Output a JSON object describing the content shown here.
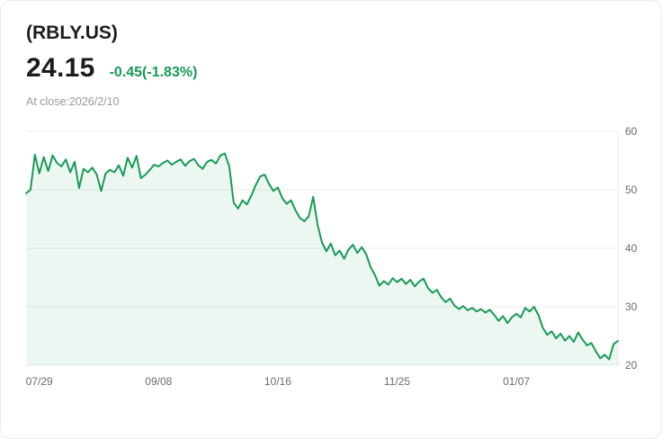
{
  "header": {
    "symbol": "(RBLY.US)",
    "price": "24.15",
    "change": "-0.45(-1.83%)",
    "close_info": "At close:2026/2/10"
  },
  "colors": {
    "change_green": "#169b54",
    "line": "#169b54",
    "fill": "rgba(22,155,84,0.08)",
    "grid": "#ececec",
    "axis_text": "#6b6b6b"
  },
  "chart_data": {
    "type": "area",
    "title": "(RBLY.US) daily close price",
    "ylabel": "",
    "xlabel": "",
    "ylim": [
      20,
      60
    ],
    "y_ticks": [
      60,
      50,
      40,
      30,
      20
    ],
    "grid": "horizontal",
    "legend": "none",
    "x_ticks": [
      {
        "label": "07/29",
        "index": 3
      },
      {
        "label": "09/08",
        "index": 30
      },
      {
        "label": "10/16",
        "index": 57
      },
      {
        "label": "11/25",
        "index": 84
      },
      {
        "label": "01/07",
        "index": 111
      }
    ],
    "values": [
      49.4,
      50.0,
      56.0,
      52.8,
      55.6,
      53.2,
      55.9,
      54.6,
      54.0,
      55.2,
      53.0,
      54.8,
      50.3,
      53.6,
      53.0,
      53.8,
      52.6,
      49.8,
      52.8,
      53.4,
      53.0,
      54.2,
      52.4,
      55.5,
      53.8,
      55.8,
      52.0,
      52.6,
      53.4,
      54.3,
      54.0,
      54.6,
      55.0,
      54.3,
      54.8,
      55.2,
      54.1,
      54.9,
      55.3,
      54.2,
      53.6,
      54.8,
      55.1,
      54.5,
      55.9,
      56.2,
      54.0,
      47.8,
      46.8,
      48.2,
      47.5,
      49.0,
      50.8,
      52.3,
      52.6,
      51.0,
      49.8,
      50.4,
      48.6,
      47.6,
      48.2,
      46.5,
      45.2,
      44.6,
      45.5,
      48.8,
      44.0,
      41.0,
      39.5,
      40.8,
      38.8,
      39.6,
      38.2,
      39.8,
      40.6,
      39.2,
      40.2,
      39.0,
      36.8,
      35.4,
      33.6,
      34.4,
      33.8,
      34.9,
      34.2,
      34.8,
      33.9,
      34.6,
      33.5,
      34.3,
      34.8,
      33.2,
      32.4,
      32.9,
      31.6,
      30.8,
      31.4,
      30.2,
      29.6,
      30.1,
      29.4,
      29.8,
      29.2,
      29.6,
      29.0,
      29.5,
      28.6,
      27.6,
      28.4,
      27.2,
      28.2,
      28.8,
      28.2,
      29.8,
      29.2,
      30.0,
      28.6,
      26.4,
      25.2,
      25.8,
      24.6,
      25.4,
      24.2,
      25.0,
      24.0,
      25.6,
      24.4,
      23.4,
      23.8,
      22.4,
      21.2,
      21.8,
      21.0,
      23.6,
      24.15
    ]
  }
}
